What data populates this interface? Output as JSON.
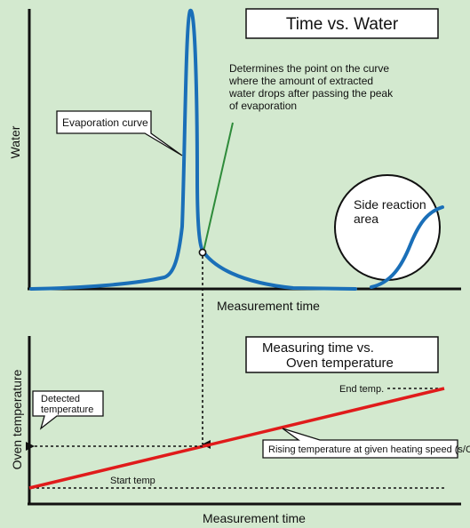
{
  "colors": {
    "background": "#d3e9cf",
    "evaporation_curve": "#1a6fb8",
    "temperature_line": "#e01b1b",
    "annotation_line": "#2e8b3a",
    "axis": "#111111"
  },
  "top_chart": {
    "title": "Time vs. Water",
    "ylabel": "Water",
    "xlabel": "Measurement time",
    "evaporation_label": "Evaporation curve",
    "annotation_lines": [
      "Determines the point on the curve",
      "where the amount of extracted",
      "water drops after passing the peak",
      "of evaporation"
    ],
    "side_reaction_lines": [
      "Side reaction",
      "area"
    ]
  },
  "bottom_chart": {
    "title_lines": [
      "Measuring time vs.",
      "Oven temperature"
    ],
    "ylabel": "Oven temperature",
    "xlabel": "Measurement time",
    "end_temp_label": "End temp.",
    "start_temp_label": "Start temp",
    "detected_temp_lines": [
      "Detected",
      "temperature"
    ],
    "rising_label": "Rising temperature at given heating speed (s/C)"
  }
}
